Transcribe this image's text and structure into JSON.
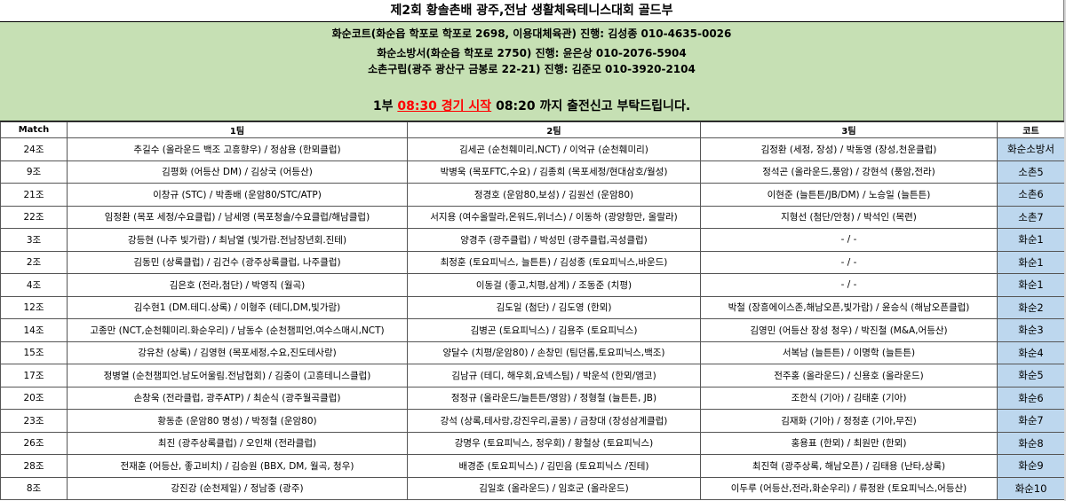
{
  "title": "제2회 황솔촌배 광주,전남 생활체육테니스대회 골드부",
  "venues": [
    "화순코트(화순읍 학포로 학포로 2698, 이용대체육관) 진행: 김성종 010-4635-0026",
    "화순소방서(화순읍 학포로 2750) 진행: 윤은상 010-2076-5904",
    "소촌구립(광주 광산구 금봉로 22-21) 진행: 김준모 010-3920-2104"
  ],
  "notice": {
    "prefix": "1부 ",
    "highlight": "08:30 경기 시작",
    "suffix": " 08:20 까지 출전신고 부탁드립니다.",
    "highlight_color": "#ff0000"
  },
  "colors": {
    "info_bg": "#c6e0b4",
    "court_bg": "#bdd7ee"
  },
  "columns": [
    "Match",
    "1팀",
    "2팀",
    "3팀",
    "코트"
  ],
  "rows": [
    {
      "match": "24조",
      "team1": "추길수 (올라운드 백조 고흥향우) / 정삼용 (한뫼클럽)",
      "team2": "김세곤 (순천훼미리,NCT) / 이억규 (순천훼미리)",
      "team3": "김정환 (세정, 장성) / 박동영 (장성,천운클럽)",
      "court": "화순소방서"
    },
    {
      "match": "9조",
      "team1": "김평화 (어등산 DM) / 김상국 (어등산)",
      "team2": "박병욱 (목포FTC,수요) / 김종희 (목포세정/현대삼호/월성)",
      "team3": "정석곤 (올라운드,풍암) / 강현석 (풍암,전라)",
      "court": "소촌5"
    },
    {
      "match": "21조",
      "team1": "이창규 (STC) / 박종배 (운암80/STC/ATP)",
      "team2": "정경호 (운암80,보성) / 김원선 (운암80)",
      "team3": "이현준 (늘튼튼/JB/DM) / 노승일 (늘튼튼)",
      "court": "소촌6"
    },
    {
      "match": "22조",
      "team1": "임정환 (목포 세정/수요클럽) / 남세영 (목포청솔/수요클럽/해남클럽)",
      "team2": "서지용 (여수올랄라,온워드,위너스) / 이동하 (광양항만, 올랄라)",
      "team3": "지형선 (첨단/안청) / 박석인 (목련)",
      "court": "소촌7"
    },
    {
      "match": "3조",
      "team1": "강등현 (나주 빛가람) / 최남열 (빛가람.전남장년회.진테)",
      "team2": "양경주 (광주클럽) / 박성민 (광주클럽,곡성클럽)",
      "team3": "- / -",
      "court": "화순1"
    },
    {
      "match": "2조",
      "team1": "김동민 (상록클럽) / 김건수 (광주상록클럽, 나주클럽)",
      "team2": "최정훈 (토요피닉스, 늘튼튼) / 김성종 (토요피닉스,바운드)",
      "team3": "- / -",
      "court": "화순1"
    },
    {
      "match": "4조",
      "team1": "김은호 (전라,첨단) / 박영직 (월곡)",
      "team2": "이동걸 (좋고,치평,삼계) / 조동준 (치평)",
      "team3": "- / -",
      "court": "화순1"
    },
    {
      "match": "12조",
      "team1": "김수현1 (DM.테디.상록) / 이형주 (테디,DM,빛가람)",
      "team2": "김도일 (첨단) / 김도영 (한뫼)",
      "team3": "박철 (장흥에이스존,해남오픈,빛가람) / 윤승식 (해남오픈클럽)",
      "court": "화순2"
    },
    {
      "match": "14조",
      "team1": "고종만 (NCT,순천훼미리.화순우리) / 남동수 (순천챔피언,여수스매시,NCT)",
      "team2": "김병곤 (토요피닉스) / 김용주 (토요피닉스)",
      "team3": "김영민 (어등산 장성 청우) / 박진철 (M&A,어등산)",
      "court": "화순3"
    },
    {
      "match": "15조",
      "team1": "강유찬 (상록) / 김영현 (목포세정,수요,진도테사랑)",
      "team2": "양달수 (치평/운암80) / 손창민 (팀던롭,토요피닉스,백조)",
      "team3": "서복남 (늘튼튼) / 이명학 (늘튼튼)",
      "court": "화순4"
    },
    {
      "match": "17조",
      "team1": "정병열 (순천챔피언.남도어울림.전남협회) / 김중이 (고흥테니스클럽)",
      "team2": "김남규 (테디, 해우회,요넥스팀) / 박운석 (한뫼/앰코)",
      "team3": "전주홍 (올라운드) / 신용호 (올라운드)",
      "court": "화순5"
    },
    {
      "match": "20조",
      "team1": "손창욱 (전라클럽, 광주ATP) / 최순식 (광주월곡클럽)",
      "team2": "정정규 (올라운드/늘튼튼/영암) / 정형철 (늘튼튼, JB)",
      "team3": "조한식 (기아) / 김태훈 (기아)",
      "court": "화순6"
    },
    {
      "match": "23조",
      "team1": "황동춘 (운암80 명성) / 박정철 (운암80)",
      "team2": "강석 (상록,테사랑,강진우리,골몽) / 금창대 (장성삼계클럽)",
      "team3": "김재화 (기아) / 정정훈 (기아,무진)",
      "court": "화순7"
    },
    {
      "match": "26조",
      "team1": "최진 (광주상록클럽) / 오인채 (전라클럽)",
      "team2": "강명우 (토요피닉스, 정우회) / 황철상 (토요피닉스)",
      "team3": "홍용표 (한뫼) / 최원만 (한뫼)",
      "court": "화순8"
    },
    {
      "match": "28조",
      "team1": "전재훈 (어등산, 좋고비치) / 김승원 (BBX, DM, 월곡, 청우)",
      "team2": "배경준 (토요피닉스) / 김민음 (토요피닉스 /진테)",
      "team3": "최진혁 (광주상록, 해남오픈) / 김태용 (난타,상록)",
      "court": "화순9"
    },
    {
      "match": "8조",
      "team1": "강진강 (순천제일) / 정남중 (광주)",
      "team2": "김일호 (올라운드) / 임호군 (올라운드)",
      "team3": "이두루 (어등산,전라,화순우리) / 류정완 (토요피닉스,어등산)",
      "court": "화순10"
    }
  ]
}
